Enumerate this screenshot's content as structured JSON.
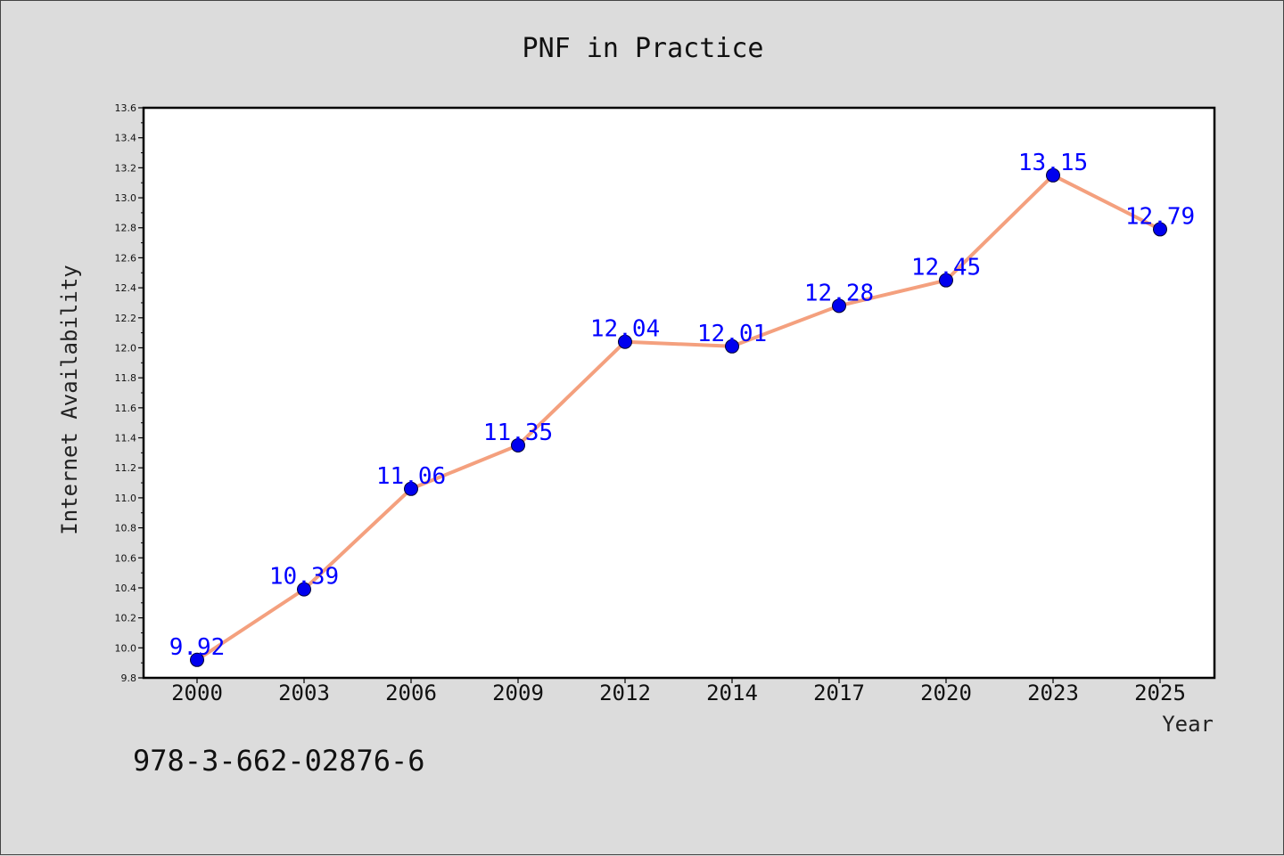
{
  "chart_data": {
    "type": "line",
    "title": "PNF in Practice",
    "xlabel": "Year",
    "ylabel": "Internet Availability",
    "categories": [
      "2000",
      "2003",
      "2006",
      "2009",
      "2012",
      "2014",
      "2017",
      "2020",
      "2023",
      "2025"
    ],
    "series": [
      {
        "values": [
          9.92,
          10.39,
          11.06,
          11.35,
          12.04,
          12.01,
          12.28,
          12.45,
          13.15,
          12.79
        ]
      }
    ],
    "data_labels": [
      "9.92",
      "10.39",
      "11.06",
      "11.35",
      "12.04",
      "12.01",
      "12.28",
      "12.45",
      "13.15",
      "12.79"
    ],
    "ylim": [
      9.8,
      13.6
    ],
    "yticks": [
      "9.8",
      "10.0",
      "10.2",
      "10.4",
      "10.6",
      "10.8",
      "11.0",
      "11.2",
      "11.4",
      "11.6",
      "11.8",
      "12.0",
      "12.2",
      "12.4",
      "12.6",
      "12.8",
      "13.0",
      "13.2",
      "13.4",
      "13.6"
    ],
    "grid": false,
    "line_color": "#f4a07e",
    "marker_color": "#0000ee",
    "label_color": "#0000ff"
  },
  "footer": {
    "code": "978-3-662-02876-6"
  }
}
